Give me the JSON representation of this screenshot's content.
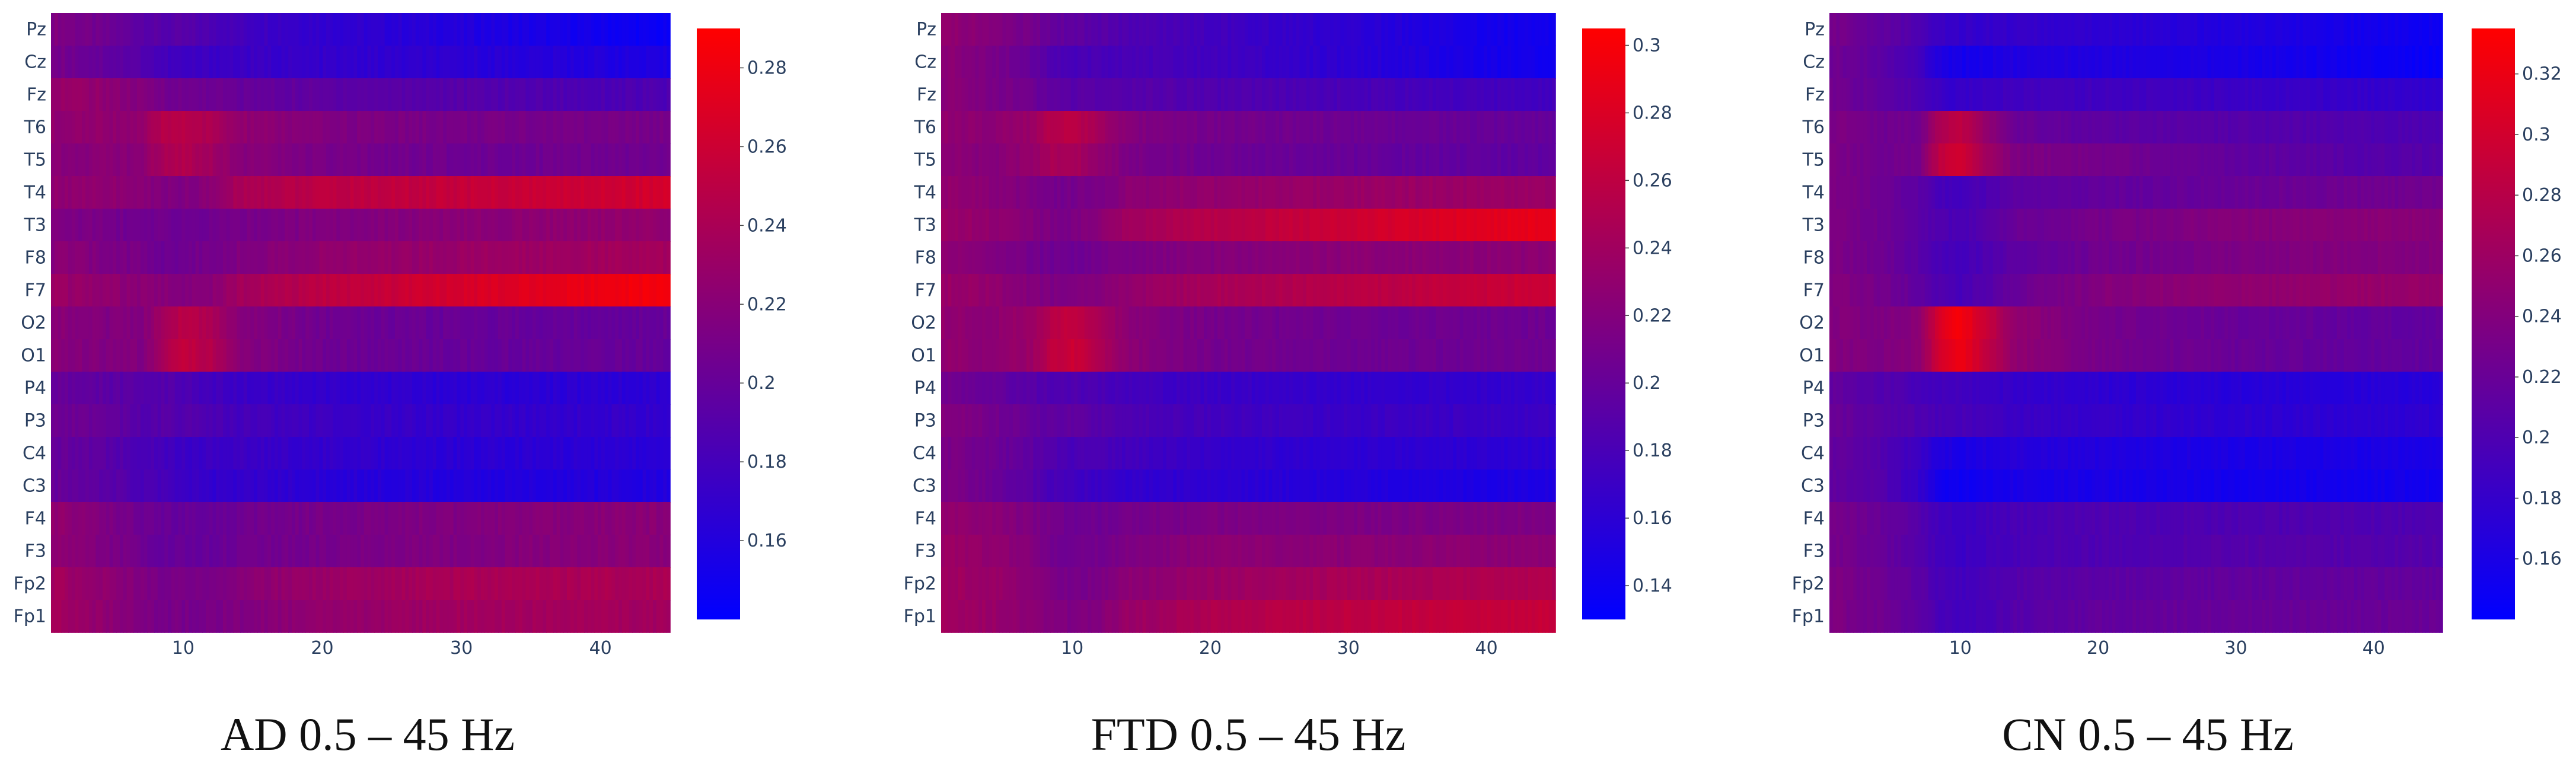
{
  "chart_data": [
    {
      "type": "heatmap",
      "title": "AD 0.5 – 45 Hz",
      "xlabel": "",
      "ylabel": "",
      "x_range": [
        0.5,
        45
      ],
      "x_ticks": [
        10,
        20,
        30,
        40
      ],
      "y_categories": [
        "Pz",
        "Cz",
        "Fz",
        "T6",
        "T5",
        "T4",
        "T3",
        "F8",
        "F7",
        "O2",
        "O1",
        "P4",
        "P3",
        "C4",
        "C3",
        "F4",
        "F3",
        "Fp2",
        "Fp1"
      ],
      "colorscale": [
        "#0000ff",
        "#ff0000"
      ],
      "zlim": [
        0.14,
        0.29
      ],
      "colorbar_ticks": [
        0.16,
        0.18,
        0.2,
        0.22,
        0.24,
        0.26,
        0.28
      ],
      "freq_points": [
        1,
        4,
        7,
        8.5,
        10,
        12,
        14,
        20,
        30,
        40,
        45
      ],
      "values": [
        [
          0.215,
          0.205,
          0.195,
          0.19,
          0.19,
          0.185,
          0.18,
          0.17,
          0.16,
          0.15,
          0.145
        ],
        [
          0.21,
          0.2,
          0.19,
          0.18,
          0.175,
          0.175,
          0.175,
          0.17,
          0.165,
          0.16,
          0.155
        ],
        [
          0.23,
          0.225,
          0.215,
          0.21,
          0.205,
          0.205,
          0.2,
          0.195,
          0.19,
          0.185,
          0.185
        ],
        [
          0.225,
          0.225,
          0.225,
          0.245,
          0.25,
          0.24,
          0.225,
          0.215,
          0.21,
          0.21,
          0.21
        ],
        [
          0.22,
          0.22,
          0.22,
          0.24,
          0.245,
          0.235,
          0.22,
          0.21,
          0.205,
          0.205,
          0.205
        ],
        [
          0.225,
          0.225,
          0.22,
          0.215,
          0.215,
          0.22,
          0.24,
          0.25,
          0.255,
          0.26,
          0.265
        ],
        [
          0.215,
          0.21,
          0.205,
          0.205,
          0.205,
          0.205,
          0.21,
          0.215,
          0.22,
          0.225,
          0.225
        ],
        [
          0.22,
          0.215,
          0.21,
          0.205,
          0.205,
          0.21,
          0.215,
          0.225,
          0.23,
          0.235,
          0.235
        ],
        [
          0.23,
          0.225,
          0.22,
          0.22,
          0.215,
          0.22,
          0.235,
          0.25,
          0.265,
          0.28,
          0.285
        ],
        [
          0.22,
          0.215,
          0.215,
          0.235,
          0.25,
          0.24,
          0.22,
          0.205,
          0.2,
          0.2,
          0.2
        ],
        [
          0.22,
          0.215,
          0.215,
          0.235,
          0.255,
          0.245,
          0.22,
          0.205,
          0.2,
          0.2,
          0.2
        ],
        [
          0.2,
          0.195,
          0.19,
          0.19,
          0.185,
          0.18,
          0.175,
          0.17,
          0.165,
          0.165,
          0.165
        ],
        [
          0.205,
          0.2,
          0.19,
          0.19,
          0.19,
          0.185,
          0.18,
          0.175,
          0.17,
          0.17,
          0.17
        ],
        [
          0.2,
          0.195,
          0.185,
          0.18,
          0.175,
          0.175,
          0.175,
          0.17,
          0.165,
          0.165,
          0.165
        ],
        [
          0.2,
          0.195,
          0.185,
          0.18,
          0.175,
          0.17,
          0.17,
          0.165,
          0.16,
          0.16,
          0.16
        ],
        [
          0.225,
          0.215,
          0.205,
          0.2,
          0.2,
          0.2,
          0.205,
          0.21,
          0.215,
          0.22,
          0.22
        ],
        [
          0.225,
          0.215,
          0.205,
          0.2,
          0.2,
          0.2,
          0.205,
          0.21,
          0.215,
          0.22,
          0.22
        ],
        [
          0.235,
          0.225,
          0.215,
          0.21,
          0.21,
          0.21,
          0.22,
          0.23,
          0.24,
          0.24,
          0.24
        ],
        [
          0.235,
          0.225,
          0.215,
          0.21,
          0.21,
          0.21,
          0.215,
          0.225,
          0.235,
          0.235,
          0.235
        ]
      ]
    },
    {
      "type": "heatmap",
      "title": "FTD 0.5 – 45 Hz",
      "xlabel": "",
      "ylabel": "",
      "x_range": [
        0.5,
        45
      ],
      "x_ticks": [
        10,
        20,
        30,
        40
      ],
      "y_categories": [
        "Pz",
        "Cz",
        "Fz",
        "T6",
        "T5",
        "T4",
        "T3",
        "F8",
        "F7",
        "O2",
        "O1",
        "P4",
        "P3",
        "C4",
        "C3",
        "F4",
        "F3",
        "Fp2",
        "Fp1"
      ],
      "colorscale": [
        "#0000ff",
        "#ff0000"
      ],
      "zlim": [
        0.13,
        0.305
      ],
      "colorbar_ticks": [
        0.14,
        0.16,
        0.18,
        0.2,
        0.22,
        0.24,
        0.26,
        0.28,
        0.3
      ],
      "freq_points": [
        1,
        4,
        7,
        8.5,
        10,
        12,
        14,
        20,
        30,
        40,
        45
      ],
      "values": [
        [
          0.23,
          0.22,
          0.21,
          0.2,
          0.195,
          0.19,
          0.185,
          0.175,
          0.16,
          0.145,
          0.14
        ],
        [
          0.225,
          0.215,
          0.2,
          0.185,
          0.18,
          0.18,
          0.18,
          0.175,
          0.16,
          0.145,
          0.14
        ],
        [
          0.225,
          0.215,
          0.205,
          0.195,
          0.19,
          0.19,
          0.19,
          0.185,
          0.18,
          0.175,
          0.175
        ],
        [
          0.23,
          0.225,
          0.235,
          0.255,
          0.26,
          0.24,
          0.22,
          0.21,
          0.205,
          0.2,
          0.2
        ],
        [
          0.225,
          0.22,
          0.23,
          0.245,
          0.245,
          0.23,
          0.215,
          0.205,
          0.2,
          0.195,
          0.195
        ],
        [
          0.23,
          0.225,
          0.215,
          0.21,
          0.21,
          0.215,
          0.225,
          0.23,
          0.235,
          0.235,
          0.235
        ],
        [
          0.235,
          0.23,
          0.22,
          0.215,
          0.215,
          0.225,
          0.24,
          0.255,
          0.27,
          0.285,
          0.29
        ],
        [
          0.225,
          0.22,
          0.21,
          0.205,
          0.205,
          0.21,
          0.215,
          0.22,
          0.225,
          0.225,
          0.225
        ],
        [
          0.235,
          0.23,
          0.22,
          0.215,
          0.215,
          0.22,
          0.23,
          0.245,
          0.255,
          0.265,
          0.27
        ],
        [
          0.23,
          0.225,
          0.235,
          0.255,
          0.265,
          0.245,
          0.225,
          0.21,
          0.205,
          0.205,
          0.205
        ],
        [
          0.23,
          0.225,
          0.235,
          0.26,
          0.27,
          0.25,
          0.225,
          0.21,
          0.205,
          0.205,
          0.205
        ],
        [
          0.21,
          0.2,
          0.19,
          0.185,
          0.185,
          0.18,
          0.175,
          0.17,
          0.165,
          0.165,
          0.165
        ],
        [
          0.22,
          0.21,
          0.2,
          0.195,
          0.195,
          0.19,
          0.185,
          0.175,
          0.17,
          0.17,
          0.17
        ],
        [
          0.215,
          0.205,
          0.195,
          0.185,
          0.18,
          0.18,
          0.175,
          0.165,
          0.16,
          0.16,
          0.16
        ],
        [
          0.215,
          0.205,
          0.19,
          0.18,
          0.175,
          0.17,
          0.165,
          0.16,
          0.155,
          0.15,
          0.15
        ],
        [
          0.23,
          0.225,
          0.215,
          0.21,
          0.205,
          0.205,
          0.21,
          0.215,
          0.215,
          0.215,
          0.215
        ],
        [
          0.235,
          0.23,
          0.22,
          0.21,
          0.205,
          0.21,
          0.215,
          0.225,
          0.225,
          0.225,
          0.225
        ],
        [
          0.24,
          0.235,
          0.225,
          0.215,
          0.21,
          0.215,
          0.225,
          0.235,
          0.245,
          0.25,
          0.25
        ],
        [
          0.24,
          0.235,
          0.225,
          0.22,
          0.215,
          0.22,
          0.235,
          0.25,
          0.26,
          0.265,
          0.265
        ]
      ]
    },
    {
      "type": "heatmap",
      "title": "CN 0.5 – 45 Hz",
      "xlabel": "",
      "ylabel": "",
      "x_range": [
        0.5,
        45
      ],
      "x_ticks": [
        10,
        20,
        30,
        40
      ],
      "y_categories": [
        "Pz",
        "Cz",
        "Fz",
        "T6",
        "T5",
        "T4",
        "T3",
        "F8",
        "F7",
        "O2",
        "O1",
        "P4",
        "P3",
        "C4",
        "C3",
        "F4",
        "F3",
        "Fp2",
        "Fp1"
      ],
      "colorscale": [
        "#0000ff",
        "#ff0000"
      ],
      "zlim": [
        0.14,
        0.335
      ],
      "colorbar_ticks": [
        0.16,
        0.18,
        0.2,
        0.22,
        0.24,
        0.26,
        0.28,
        0.3,
        0.32
      ],
      "freq_points": [
        1,
        4,
        7,
        8.5,
        10,
        12,
        14,
        20,
        30,
        40,
        45
      ],
      "values": [
        [
          0.23,
          0.215,
          0.2,
          0.185,
          0.18,
          0.18,
          0.18,
          0.175,
          0.165,
          0.155,
          0.15
        ],
        [
          0.225,
          0.21,
          0.19,
          0.165,
          0.155,
          0.16,
          0.165,
          0.165,
          0.16,
          0.15,
          0.145
        ],
        [
          0.225,
          0.215,
          0.2,
          0.185,
          0.18,
          0.185,
          0.19,
          0.19,
          0.185,
          0.18,
          0.18
        ],
        [
          0.235,
          0.225,
          0.225,
          0.27,
          0.285,
          0.25,
          0.22,
          0.21,
          0.205,
          0.2,
          0.2
        ],
        [
          0.235,
          0.225,
          0.23,
          0.285,
          0.3,
          0.26,
          0.235,
          0.23,
          0.215,
          0.205,
          0.205
        ],
        [
          0.235,
          0.225,
          0.21,
          0.195,
          0.19,
          0.2,
          0.21,
          0.215,
          0.22,
          0.225,
          0.225
        ],
        [
          0.235,
          0.225,
          0.21,
          0.2,
          0.195,
          0.205,
          0.22,
          0.23,
          0.24,
          0.245,
          0.245
        ],
        [
          0.235,
          0.225,
          0.21,
          0.195,
          0.19,
          0.2,
          0.21,
          0.225,
          0.235,
          0.24,
          0.24
        ],
        [
          0.24,
          0.23,
          0.215,
          0.2,
          0.195,
          0.205,
          0.22,
          0.24,
          0.25,
          0.255,
          0.255
        ],
        [
          0.24,
          0.235,
          0.245,
          0.305,
          0.33,
          0.29,
          0.25,
          0.23,
          0.22,
          0.215,
          0.215
        ],
        [
          0.24,
          0.235,
          0.245,
          0.3,
          0.325,
          0.285,
          0.25,
          0.23,
          0.22,
          0.215,
          0.215
        ],
        [
          0.215,
          0.205,
          0.195,
          0.19,
          0.19,
          0.185,
          0.18,
          0.175,
          0.17,
          0.17,
          0.17
        ],
        [
          0.22,
          0.21,
          0.2,
          0.195,
          0.195,
          0.19,
          0.185,
          0.18,
          0.175,
          0.175,
          0.175
        ],
        [
          0.215,
          0.205,
          0.185,
          0.165,
          0.16,
          0.165,
          0.17,
          0.165,
          0.16,
          0.16,
          0.16
        ],
        [
          0.215,
          0.205,
          0.18,
          0.155,
          0.15,
          0.155,
          0.16,
          0.16,
          0.155,
          0.155,
          0.155
        ],
        [
          0.23,
          0.22,
          0.205,
          0.19,
          0.185,
          0.19,
          0.195,
          0.2,
          0.2,
          0.2,
          0.2
        ],
        [
          0.23,
          0.22,
          0.205,
          0.19,
          0.185,
          0.19,
          0.195,
          0.2,
          0.205,
          0.205,
          0.205
        ],
        [
          0.235,
          0.225,
          0.21,
          0.195,
          0.19,
          0.195,
          0.205,
          0.21,
          0.215,
          0.215,
          0.215
        ],
        [
          0.235,
          0.225,
          0.21,
          0.195,
          0.19,
          0.195,
          0.205,
          0.215,
          0.22,
          0.22,
          0.22
        ]
      ]
    }
  ]
}
